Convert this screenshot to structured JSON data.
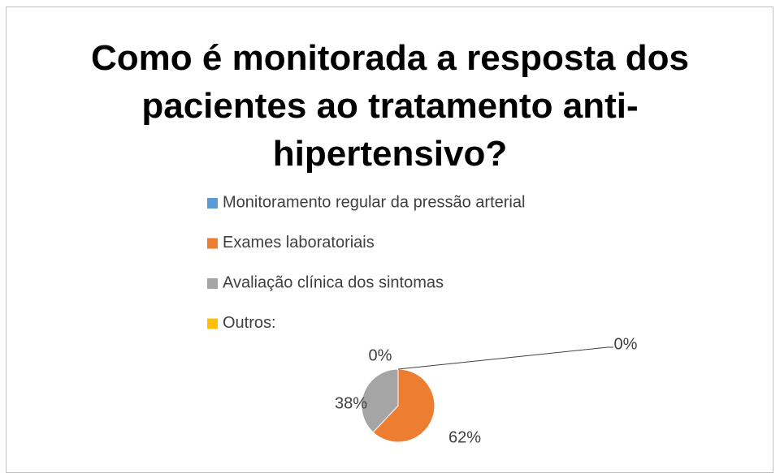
{
  "chart_data": {
    "type": "pie",
    "title": "Como é monitorada a resposta dos pacientes ao tratamento anti-hipertensivo?",
    "categories": [
      "Monitoramento regular da pressão arterial",
      "Exames laboratoriais",
      "Avaliação clínica dos sintomas",
      "Outros:"
    ],
    "values": [
      0,
      62,
      38,
      0
    ],
    "value_labels": [
      "0%",
      "62%",
      "38%",
      "0%"
    ],
    "colors": [
      "#5b9bd5",
      "#ed7d31",
      "#a5a5a5",
      "#ffc000"
    ],
    "legend": "top"
  }
}
